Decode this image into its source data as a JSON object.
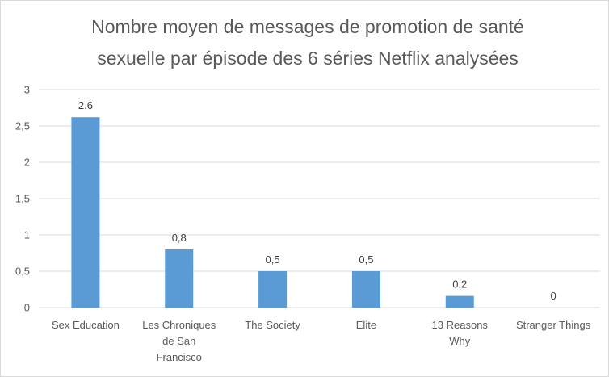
{
  "chart_data": {
    "type": "bar",
    "title": "Nombre moyen de messages de promotion de santé sexuelle par épisode des 6 séries Netflix analysées",
    "title_lines": [
      "Nombre moyen de messages de promotion de santé",
      "sexuelle par épisode des 6 séries Netflix analysées"
    ],
    "categories": [
      "Sex Education",
      "Les Chroniques de San Francisco",
      "The Society",
      "Elite",
      "13 Reasons Why",
      "Stranger Things"
    ],
    "category_lines": [
      [
        "Sex Education"
      ],
      [
        "Les Chroniques",
        "de San",
        "Francisco"
      ],
      [
        "The Society"
      ],
      [
        "Elite"
      ],
      [
        "13 Reasons",
        "Why"
      ],
      [
        "Stranger Things"
      ]
    ],
    "values": [
      2.62,
      0.8,
      0.5,
      0.5,
      0.16,
      0
    ],
    "data_labels": [
      "2.6",
      "0,8",
      "0,5",
      "0,5",
      "0.2",
      "0"
    ],
    "y_ticks": [
      0,
      0.5,
      1,
      1.5,
      2,
      2.5,
      3
    ],
    "y_tick_labels": [
      "0",
      "0,5",
      "1",
      "1,5",
      "2",
      "2,5",
      "3"
    ],
    "ylim": [
      0,
      3
    ],
    "xlabel": "",
    "ylabel": "",
    "grid": true,
    "bar_color": "#5b9bd5",
    "grid_color": "#d9d9d9"
  }
}
